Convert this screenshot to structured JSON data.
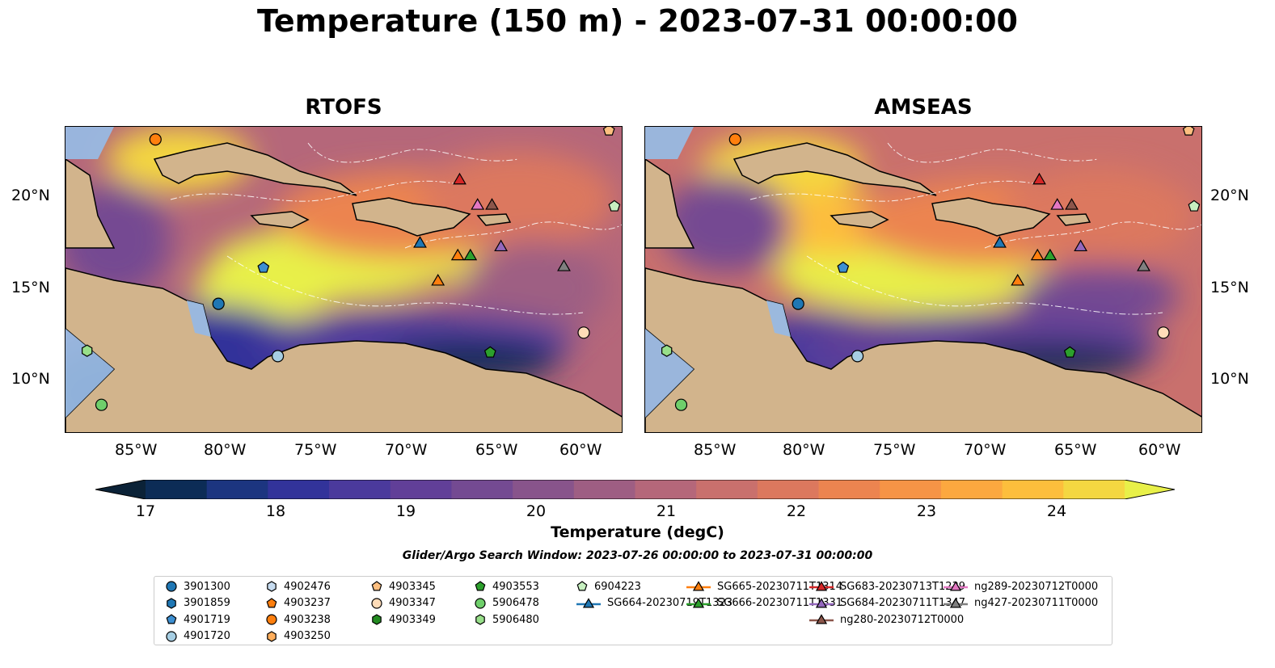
{
  "title": "Temperature (150 m) - 2023-07-31 00:00:00",
  "panels": [
    {
      "name": "RTOFS"
    },
    {
      "name": "AMSEAS"
    }
  ],
  "lat_ticks": [
    "20°N",
    "15°N",
    "10°N"
  ],
  "lon_ticks": [
    "85°W",
    "80°W",
    "75°W",
    "70°W",
    "65°W",
    "60°W"
  ],
  "colorbar": {
    "label": "Temperature (degC)",
    "ticks": [
      "17",
      "18",
      "19",
      "20",
      "21",
      "22",
      "23",
      "24"
    ],
    "min": 16.5,
    "max": 25,
    "colors": [
      "#0b2237",
      "#0c2c56",
      "#1c3580",
      "#32339a",
      "#4b3a9c",
      "#613f98",
      "#744a92",
      "#88548b",
      "#9e5e83",
      "#b5677a",
      "#c9706d",
      "#dc785e",
      "#ec8450",
      "#f69446",
      "#fca83f",
      "#fdbe3c",
      "#f4d741",
      "#e8f049"
    ]
  },
  "search_window": "Glider/Argo Search Window: 2023-07-26 00:00:00 to 2023-07-31 00:00:00",
  "legend": [
    {
      "label": "3901300",
      "marker": "circle",
      "color": "#1f77b4"
    },
    {
      "label": "3901859",
      "marker": "hexagon",
      "color": "#1f77b4"
    },
    {
      "label": "4901719",
      "marker": "pentagon",
      "color": "#3d8fd1"
    },
    {
      "label": "4901720",
      "marker": "circle",
      "color": "#a6cee3"
    },
    {
      "label": "4902476",
      "marker": "hexagon",
      "color": "#c6dbef"
    },
    {
      "label": "4903237",
      "marker": "pentagon",
      "color": "#ff7f0e"
    },
    {
      "label": "4903238",
      "marker": "circle",
      "color": "#ff7f0e"
    },
    {
      "label": "4903250",
      "marker": "hexagon",
      "color": "#ffae5c"
    },
    {
      "label": "4903345",
      "marker": "pentagon",
      "color": "#fdbf80"
    },
    {
      "label": "4903347",
      "marker": "circle",
      "color": "#ffdcb8"
    },
    {
      "label": "4903349",
      "marker": "hexagon",
      "color": "#238b21"
    },
    {
      "label": "4903553",
      "marker": "pentagon",
      "color": "#2ca02c"
    },
    {
      "label": "5906478",
      "marker": "circle",
      "color": "#6fcf6b"
    },
    {
      "label": "5906480",
      "marker": "hexagon",
      "color": "#98df8a"
    },
    {
      "label": "6904223",
      "marker": "pentagon",
      "color": "#c7f0c0"
    },
    {
      "label": "SG664-20230719T1323",
      "marker": "triangle-line",
      "color": "#1f77b4"
    },
    {
      "label": "SG665-20230711T1314",
      "marker": "triangle-line",
      "color": "#ff7f0e"
    },
    {
      "label": "SG666-20230711T1331",
      "marker": "triangle-line",
      "color": "#2ca02c"
    },
    {
      "label": "SG683-20230713T1239",
      "marker": "triangle-line",
      "color": "#d62728"
    },
    {
      "label": "SG684-20230711T1347",
      "marker": "triangle-line",
      "color": "#9467bd"
    },
    {
      "label": "ng280-20230712T0000",
      "marker": "triangle-line",
      "color": "#8c564b"
    },
    {
      "label": "ng289-20230712T0000",
      "marker": "triangle-line",
      "color": "#e377c2"
    },
    {
      "label": "ng427-20230711T0000",
      "marker": "triangle-line",
      "color": "#7f7f7f"
    }
  ],
  "map_extent": {
    "lon": [
      -89,
      -58
    ],
    "lat": [
      7,
      24
    ]
  },
  "observations": [
    {
      "id": "4903238",
      "lon": -84,
      "lat": 23.3
    },
    {
      "id": "4903345",
      "lon": -58.8,
      "lat": 23.8
    },
    {
      "id": "6904223",
      "lon": -58.5,
      "lat": 19.6
    },
    {
      "id": "4901719",
      "lon": -78,
      "lat": 16.2
    },
    {
      "id": "3901300",
      "lon": -80.5,
      "lat": 14.2
    },
    {
      "id": "5906480",
      "lon": -87.8,
      "lat": 11.6
    },
    {
      "id": "4901720",
      "lon": -77.2,
      "lat": 11.3
    },
    {
      "id": "5906478",
      "lon": -87,
      "lat": 8.6
    },
    {
      "id": "4903553",
      "lon": -65.4,
      "lat": 11.5
    },
    {
      "id": "4903347",
      "lon": -60.2,
      "lat": 12.6
    },
    {
      "id": "SG683-20230713T1239",
      "lon": -67.1,
      "lat": 21.1
    },
    {
      "id": "ng289-20230712T0000",
      "lon": -66.1,
      "lat": 19.7
    },
    {
      "id": "ng280-20230712T0000",
      "lon": -65.3,
      "lat": 19.7
    },
    {
      "id": "SG664-20230719T1323",
      "lon": -69.3,
      "lat": 17.6
    },
    {
      "id": "SG684-20230711T1347",
      "lon": -64.8,
      "lat": 17.4
    },
    {
      "id": "SG665-20230711T1314",
      "lon": -67.2,
      "lat": 16.9
    },
    {
      "id": "SG666-20230711T1331",
      "lon": -66.5,
      "lat": 16.9
    },
    {
      "id": "SG665-20230711T1314",
      "lon": -68.3,
      "lat": 15.5
    },
    {
      "id": "ng427-20230711T0000",
      "lon": -61.3,
      "lat": 16.3
    }
  ]
}
